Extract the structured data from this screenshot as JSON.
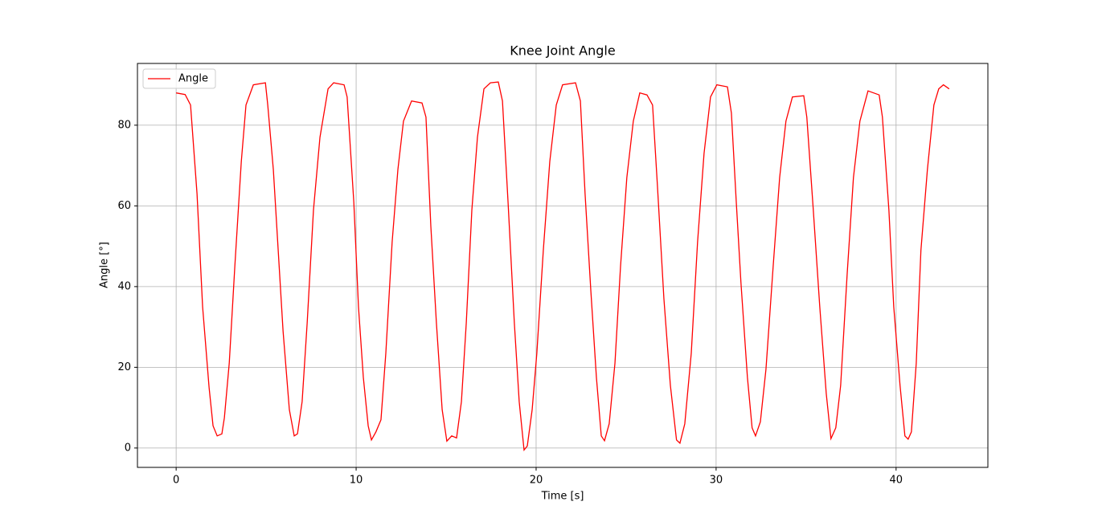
{
  "chart_data": {
    "type": "line",
    "title": "Knee Joint Angle",
    "x_label": "Time [s]",
    "y_label": "Angle [°]",
    "x": [
      0,
      0.5,
      0.8,
      1.16,
      1.47,
      1.83,
      2.05,
      2.28,
      2.54,
      2.68,
      2.95,
      3.26,
      3.62,
      3.88,
      4.29,
      4.96,
      5.09,
      5.4,
      5.67,
      5.94,
      6.29,
      6.56,
      6.74,
      7.0,
      7.28,
      7.63,
      7.99,
      8.44,
      8.75,
      9.33,
      9.5,
      9.87,
      10.13,
      10.4,
      10.67,
      10.85,
      11.1,
      11.38,
      11.65,
      12.0,
      12.32,
      12.63,
      13.08,
      13.66,
      13.88,
      14.15,
      14.46,
      14.78,
      15.04,
      15.31,
      15.58,
      15.85,
      16.12,
      16.43,
      16.74,
      17.1,
      17.46,
      17.9,
      18.13,
      18.44,
      18.79,
      19.06,
      19.33,
      19.51,
      19.78,
      20.04,
      20.4,
      20.76,
      21.12,
      21.47,
      22.19,
      22.46,
      22.72,
      23.04,
      23.35,
      23.62,
      23.8,
      24.06,
      24.38,
      24.69,
      25.04,
      25.4,
      25.76,
      26.16,
      26.47,
      26.74,
      27.1,
      27.46,
      27.8,
      27.99,
      28.26,
      28.62,
      28.97,
      29.33,
      29.69,
      30.04,
      30.63,
      30.85,
      31.12,
      31.38,
      31.74,
      32.0,
      32.19,
      32.46,
      32.77,
      33.17,
      33.53,
      33.88,
      34.24,
      34.87,
      35.04,
      35.4,
      35.76,
      36.12,
      36.38,
      36.65,
      36.92,
      37.28,
      37.63,
      37.99,
      38.44,
      39.06,
      39.24,
      39.6,
      39.87,
      40.22,
      40.49,
      40.67,
      40.85,
      41.12,
      41.38,
      41.74,
      42.1,
      42.37,
      42.63,
      42.95
    ],
    "series": [
      {
        "name": "Angle",
        "color": "#ff0000",
        "values": [
          88,
          87.6,
          85,
          63,
          35,
          15,
          5.5,
          3,
          3.5,
          7.5,
          21,
          45,
          71,
          85,
          90,
          90.5,
          85,
          69,
          49,
          29,
          9.5,
          3,
          3.5,
          11.5,
          31,
          59,
          77,
          89,
          90.5,
          90,
          87,
          61,
          35,
          17.5,
          5.5,
          2,
          4,
          7,
          23.5,
          51,
          69,
          81,
          86,
          85.5,
          82,
          55,
          31,
          9.5,
          1.7,
          3,
          2.5,
          11.5,
          31,
          59,
          77,
          89,
          90.5,
          90.7,
          86,
          61,
          31,
          11.5,
          -0.5,
          0.5,
          9.5,
          23.5,
          49,
          71,
          85,
          90,
          90.5,
          86,
          63,
          39,
          17.5,
          3,
          1.8,
          6,
          21,
          45,
          67,
          81,
          88,
          87.5,
          85,
          65,
          37,
          15.5,
          2,
          1.2,
          6,
          23.5,
          51,
          73,
          87,
          90,
          89.5,
          83,
          61,
          41,
          17.5,
          5,
          3,
          6.5,
          19.5,
          45,
          67,
          81,
          87,
          87.3,
          82,
          59,
          35,
          13.5,
          2.3,
          5,
          15.5,
          43,
          67,
          81,
          88.5,
          87.5,
          82,
          59,
          35,
          15.5,
          3,
          2.2,
          4,
          21,
          49,
          69,
          85,
          89,
          90,
          89
        ]
      }
    ],
    "xlim": [
      -2.15,
      45.1
    ],
    "ylim": [
      -4.8,
      95.3
    ],
    "xticks": [
      0,
      10,
      20,
      30,
      40
    ],
    "yticks": [
      0,
      20,
      40,
      60,
      80
    ],
    "grid": true,
    "legend": "upper-left"
  }
}
